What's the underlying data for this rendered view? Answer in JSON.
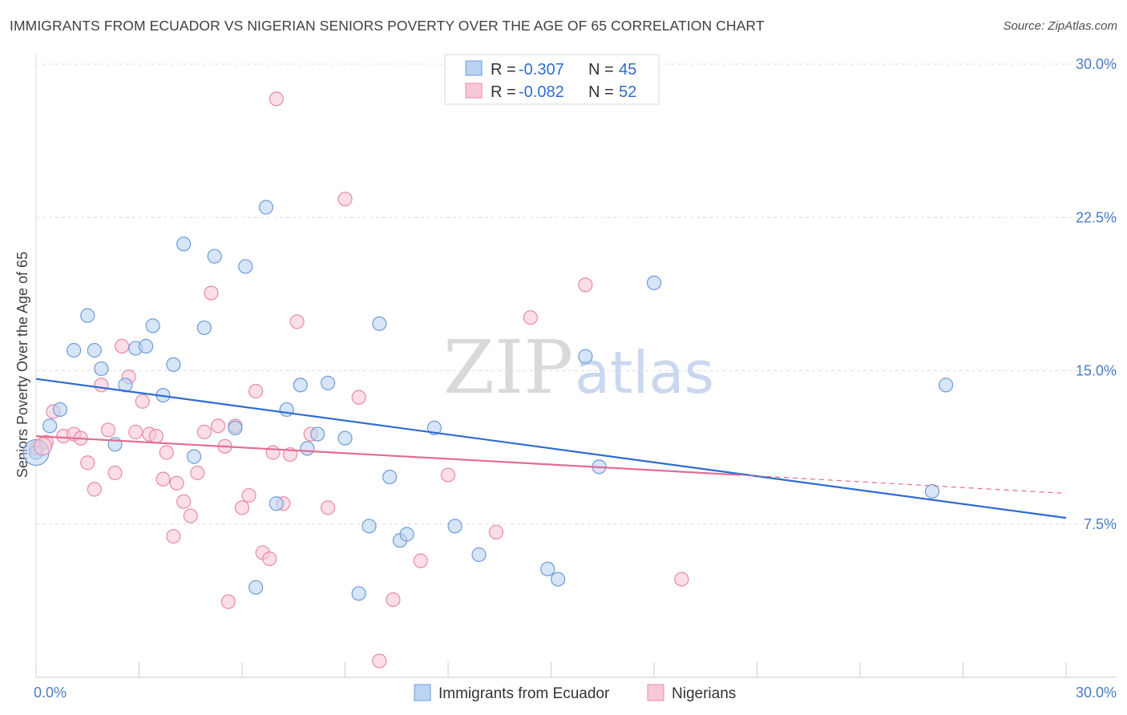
{
  "header": {
    "title": "IMMIGRANTS FROM ECUADOR VS NIGERIAN SENIORS POVERTY OVER THE AGE OF 65 CORRELATION CHART",
    "source": "Source: ZipAtlas.com"
  },
  "watermark": {
    "zip": "ZIP",
    "atlas": "atlas"
  },
  "colors": {
    "ecuador_fill": "#bad3f2",
    "ecuador_stroke": "#6f9bd8",
    "ecuador_line": "#2f6bcf",
    "nigeria_fill": "#f8c8d7",
    "nigeria_stroke": "#e88aa8",
    "nigeria_line": "#e56b93",
    "grid": "#dddddd",
    "tick_label": "#4a7cc4"
  },
  "legend": {
    "rows": [
      {
        "r_label": "R = ",
        "r_value": "-0.307",
        "n_label": "N = ",
        "n_value": "45"
      },
      {
        "r_label": "R = ",
        "r_value": "-0.082",
        "n_label": "N = ",
        "n_value": "52"
      }
    ]
  },
  "chart_data": {
    "type": "scatter",
    "title": "IMMIGRANTS FROM ECUADOR VS NIGERIAN SENIORS POVERTY OVER THE AGE OF 65 CORRELATION CHART",
    "xlabel": "",
    "ylabel": "Seniors Poverty Over the Age of 65",
    "xlim": [
      0,
      30
    ],
    "ylim": [
      0,
      30
    ],
    "x_tick_labels": [
      "0.0%",
      "30.0%"
    ],
    "y_ticks": [
      7.5,
      15.0,
      22.5,
      30.0
    ],
    "y_tick_labels": [
      "7.5%",
      "15.0%",
      "22.5%",
      "30.0%"
    ],
    "grid": true,
    "legend_position": "top-center and bottom",
    "series": [
      {
        "name": "Immigrants from Ecuador",
        "r": -0.307,
        "n": 45,
        "trend": {
          "x": [
            0,
            30
          ],
          "y": [
            14.6,
            7.8
          ]
        },
        "points": [
          [
            0.0,
            11.0
          ],
          [
            0.4,
            12.3
          ],
          [
            0.7,
            13.1
          ],
          [
            1.1,
            16.0
          ],
          [
            1.5,
            17.7
          ],
          [
            1.7,
            16.0
          ],
          [
            1.9,
            15.1
          ],
          [
            2.3,
            11.4
          ],
          [
            2.6,
            14.3
          ],
          [
            2.9,
            16.1
          ],
          [
            3.2,
            16.2
          ],
          [
            3.4,
            17.2
          ],
          [
            3.7,
            13.8
          ],
          [
            4.0,
            15.3
          ],
          [
            4.3,
            21.2
          ],
          [
            4.6,
            10.8
          ],
          [
            4.9,
            17.1
          ],
          [
            5.2,
            20.6
          ],
          [
            5.8,
            12.2
          ],
          [
            6.1,
            20.1
          ],
          [
            6.4,
            4.4
          ],
          [
            6.7,
            23.0
          ],
          [
            7.0,
            8.5
          ],
          [
            7.3,
            13.1
          ],
          [
            7.7,
            14.3
          ],
          [
            7.9,
            11.2
          ],
          [
            8.2,
            11.9
          ],
          [
            8.5,
            14.4
          ],
          [
            9.0,
            11.7
          ],
          [
            9.4,
            4.1
          ],
          [
            9.7,
            7.4
          ],
          [
            10.0,
            17.3
          ],
          [
            10.3,
            9.8
          ],
          [
            10.6,
            6.7
          ],
          [
            10.8,
            7.0
          ],
          [
            11.6,
            12.2
          ],
          [
            12.2,
            7.4
          ],
          [
            12.9,
            6.0
          ],
          [
            14.9,
            5.3
          ],
          [
            15.2,
            4.8
          ],
          [
            16.0,
            15.7
          ],
          [
            16.4,
            10.3
          ],
          [
            18.0,
            19.3
          ],
          [
            26.5,
            14.3
          ],
          [
            26.1,
            9.1
          ]
        ]
      },
      {
        "name": "Nigerians",
        "r": -0.082,
        "n": 52,
        "trend": {
          "x": [
            0,
            20.5
          ],
          "y": [
            11.8,
            9.9
          ]
        },
        "trend_ext": {
          "x": [
            20.5,
            30
          ],
          "y": [
            9.9,
            9.0
          ]
        },
        "points": [
          [
            0.0,
            11.2
          ],
          [
            0.3,
            11.5
          ],
          [
            0.5,
            13.0
          ],
          [
            0.8,
            11.8
          ],
          [
            1.1,
            11.9
          ],
          [
            1.3,
            11.7
          ],
          [
            1.5,
            10.5
          ],
          [
            1.7,
            9.2
          ],
          [
            1.9,
            14.3
          ],
          [
            2.1,
            12.1
          ],
          [
            2.3,
            10.0
          ],
          [
            2.5,
            16.2
          ],
          [
            2.7,
            14.7
          ],
          [
            2.9,
            12.0
          ],
          [
            3.1,
            13.5
          ],
          [
            3.3,
            11.9
          ],
          [
            3.5,
            11.8
          ],
          [
            3.7,
            9.7
          ],
          [
            3.8,
            11.0
          ],
          [
            4.0,
            6.9
          ],
          [
            4.1,
            9.5
          ],
          [
            4.3,
            8.6
          ],
          [
            4.5,
            7.9
          ],
          [
            4.7,
            10.0
          ],
          [
            4.9,
            12.0
          ],
          [
            5.1,
            18.8
          ],
          [
            5.3,
            12.3
          ],
          [
            5.5,
            11.3
          ],
          [
            5.6,
            3.7
          ],
          [
            5.8,
            12.3
          ],
          [
            6.0,
            8.3
          ],
          [
            6.2,
            8.9
          ],
          [
            6.4,
            14.0
          ],
          [
            6.6,
            6.1
          ],
          [
            6.8,
            5.8
          ],
          [
            6.9,
            11.0
          ],
          [
            7.0,
            28.3
          ],
          [
            7.2,
            8.5
          ],
          [
            7.4,
            10.9
          ],
          [
            7.6,
            17.4
          ],
          [
            8.0,
            11.9
          ],
          [
            8.5,
            8.3
          ],
          [
            9.0,
            23.4
          ],
          [
            9.4,
            13.7
          ],
          [
            10.0,
            0.8
          ],
          [
            10.4,
            3.8
          ],
          [
            11.2,
            5.7
          ],
          [
            13.4,
            7.1
          ],
          [
            14.4,
            17.6
          ],
          [
            16.0,
            19.2
          ],
          [
            18.8,
            4.8
          ],
          [
            12.0,
            9.9
          ]
        ]
      }
    ]
  }
}
